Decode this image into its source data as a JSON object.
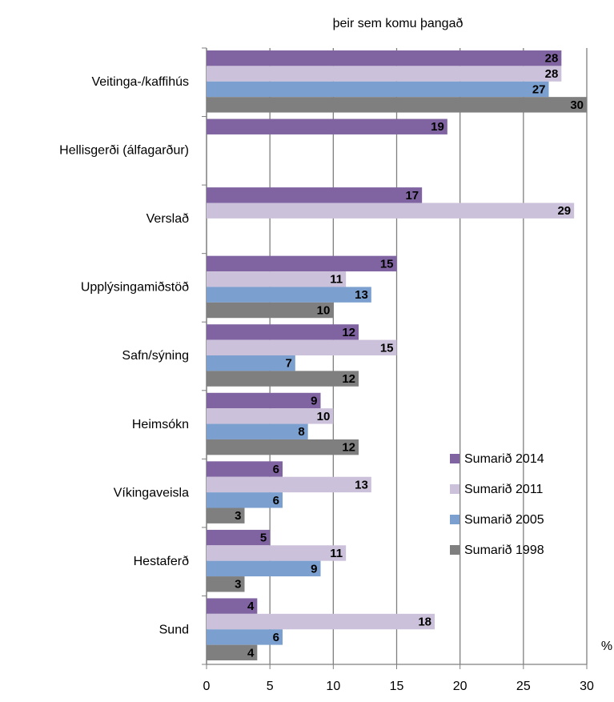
{
  "chart_data": {
    "type": "barh",
    "title": "þeir sem komu þangað",
    "x_label": "%",
    "categories": [
      "Veitinga-/kaffihús",
      "Hellisgerði (álfagarður)",
      "Verslað",
      "Upplýsingamiðstöð",
      "Safn/sýning",
      "Heimsókn",
      "Víkingaveisla",
      "Hestaferð",
      "Sund"
    ],
    "series": [
      {
        "name": "Sumarið 2014",
        "color": "#8064a2",
        "values": [
          28,
          19,
          17,
          15,
          12,
          9,
          6,
          5,
          4
        ]
      },
      {
        "name": "Sumarið 2011",
        "color": "#ccc1da",
        "values": [
          28,
          null,
          29,
          11,
          15,
          10,
          13,
          11,
          18
        ]
      },
      {
        "name": "Sumarið 2005",
        "color": "#7ba0cf",
        "values": [
          27,
          null,
          null,
          13,
          7,
          8,
          6,
          9,
          6
        ]
      },
      {
        "name": "Sumarið 1998",
        "color": "#7f7f7f",
        "values": [
          30,
          null,
          null,
          10,
          12,
          12,
          3,
          3,
          4
        ]
      }
    ],
    "xlim": [
      0,
      30
    ],
    "xticks": [
      0,
      5,
      10,
      15,
      20,
      25,
      30
    ],
    "grid": true,
    "legend": "right"
  }
}
